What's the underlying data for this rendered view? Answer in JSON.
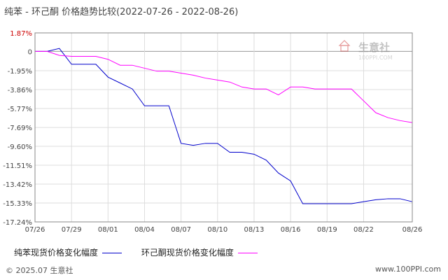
{
  "header": {
    "title": "纯苯 - 环己酮 价格趋势比较(2022-07-26 - 2022-08-26)"
  },
  "watermark": {
    "brand": "生意社",
    "site": "100PPI.COM",
    "icon": "house-logo-icon"
  },
  "footer": {
    "copyright": "© 2025.07 生意社",
    "url": "www.100PPI.com"
  },
  "colors": {
    "series1": "#0000cc",
    "series2": "#ff00ff",
    "grid": "#cccccc",
    "axis": "#666666",
    "ytick": "#cc0000"
  },
  "chart_data": {
    "type": "line",
    "title": "纯苯 - 环己酮 价格趋势比较(2022-07-26 - 2022-08-26)",
    "xlabel": "",
    "ylabel": "",
    "grid": true,
    "legend_position": "bottom",
    "x": [
      "07/26",
      "07/27",
      "07/28",
      "07/29",
      "07/30",
      "07/31",
      "08/01",
      "08/02",
      "08/03",
      "08/04",
      "08/05",
      "08/06",
      "08/07",
      "08/08",
      "08/09",
      "08/10",
      "08/11",
      "08/12",
      "08/13",
      "08/14",
      "08/15",
      "08/16",
      "08/17",
      "08/18",
      "08/19",
      "08/20",
      "08/21",
      "08/22",
      "08/23",
      "08/24",
      "08/25",
      "08/26"
    ],
    "x_tick_labels": [
      "07/26",
      "07/29",
      "08/01",
      "08/04",
      "08/07",
      "08/10",
      "08/13",
      "08/16",
      "08/19",
      "08/22",
      "08/26"
    ],
    "y_tick_labels": [
      "1.87%",
      "0",
      "-1.95%",
      "-3.86%",
      "-5.77%",
      "-7.69%",
      "-9.60%",
      "-11.51%",
      "-13.42%",
      "-15.33%",
      "-17.24%"
    ],
    "y_ticks": [
      1.87,
      0,
      -1.95,
      -3.86,
      -5.77,
      -7.69,
      -9.6,
      -11.51,
      -13.42,
      -15.33,
      -17.24
    ],
    "ylim": [
      -17.24,
      1.87
    ],
    "series": [
      {
        "name": "纯苯现货价格变化幅度",
        "color": "#0000cc",
        "values": [
          0,
          0,
          0.3,
          -1.3,
          -1.3,
          -1.3,
          -2.6,
          -3.2,
          -3.8,
          -5.5,
          -5.5,
          -5.5,
          -9.3,
          -9.5,
          -9.3,
          -9.3,
          -10.2,
          -10.2,
          -10.4,
          -11.0,
          -12.3,
          -13.1,
          -15.4,
          -15.4,
          -15.4,
          -15.4,
          -15.4,
          -15.2,
          -15.0,
          -14.9,
          -14.9,
          -15.2
        ]
      },
      {
        "name": "环己酮现货价格变化幅度",
        "color": "#ff00ff",
        "values": [
          0,
          0,
          -0.4,
          -0.5,
          -0.5,
          -0.5,
          -0.8,
          -1.4,
          -1.4,
          -1.7,
          -2.0,
          -2.0,
          -2.2,
          -2.4,
          -2.7,
          -2.9,
          -3.1,
          -3.6,
          -3.8,
          -3.8,
          -4.4,
          -3.6,
          -3.6,
          -3.8,
          -3.8,
          -3.8,
          -3.8,
          -5.0,
          -6.2,
          -6.7,
          -7.0,
          -7.2
        ]
      }
    ]
  }
}
